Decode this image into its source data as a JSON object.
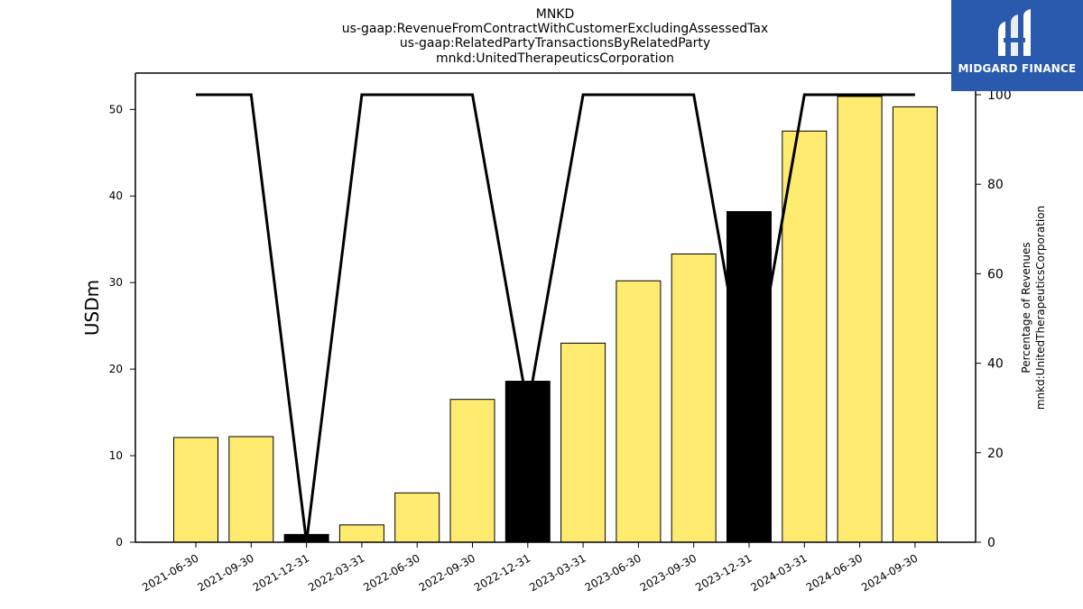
{
  "chart_data": {
    "type": "bar",
    "title_lines": [
      "MNKD",
      "us-gaap:RevenueFromContractWithCustomerExcludingAssessedTax",
      "us-gaap:RelatedPartyTransactionsByRelatedParty",
      "mnkd:UnitedTherapeuticsCorporation"
    ],
    "categories": [
      "2021-06-30",
      "2021-09-30",
      "2021-12-31",
      "2022-03-31",
      "2022-06-30",
      "2022-09-30",
      "2022-12-31",
      "2023-03-31",
      "2023-06-30",
      "2023-09-30",
      "2023-12-31",
      "2024-03-31",
      "2024-06-30",
      "2024-09-30"
    ],
    "bar_series": {
      "values": [
        12.1,
        12.2,
        0.9,
        2.0,
        5.7,
        16.5,
        18.6,
        23.0,
        30.2,
        33.3,
        38.2,
        47.5,
        51.5,
        50.3
      ],
      "highlighted": [
        false,
        false,
        true,
        false,
        false,
        false,
        true,
        false,
        false,
        false,
        true,
        false,
        false,
        false
      ],
      "color": "#ffeb70",
      "highlight_color": "#000000"
    },
    "line_series": {
      "values": [
        100,
        100,
        0,
        100,
        100,
        100,
        30,
        100,
        100,
        100,
        30,
        100,
        100,
        100
      ],
      "color": "#000000"
    },
    "ylabel": "USDm",
    "ylabel_right": [
      "Percentage of Revenues",
      "mnkd:UnitedTherapeuticsCorporation"
    ],
    "ylim": [
      0,
      54.2
    ],
    "yticks": [
      "0",
      "10",
      "20",
      "30",
      "40",
      "50"
    ],
    "ylim_right": [
      0,
      100
    ],
    "yticks_right": [
      "0",
      "20",
      "40",
      "60",
      "80",
      "100"
    ],
    "grid": false,
    "legend": "none"
  },
  "logo": {
    "text": "MIDGARD FINANCE",
    "color": "#2a5aad"
  }
}
